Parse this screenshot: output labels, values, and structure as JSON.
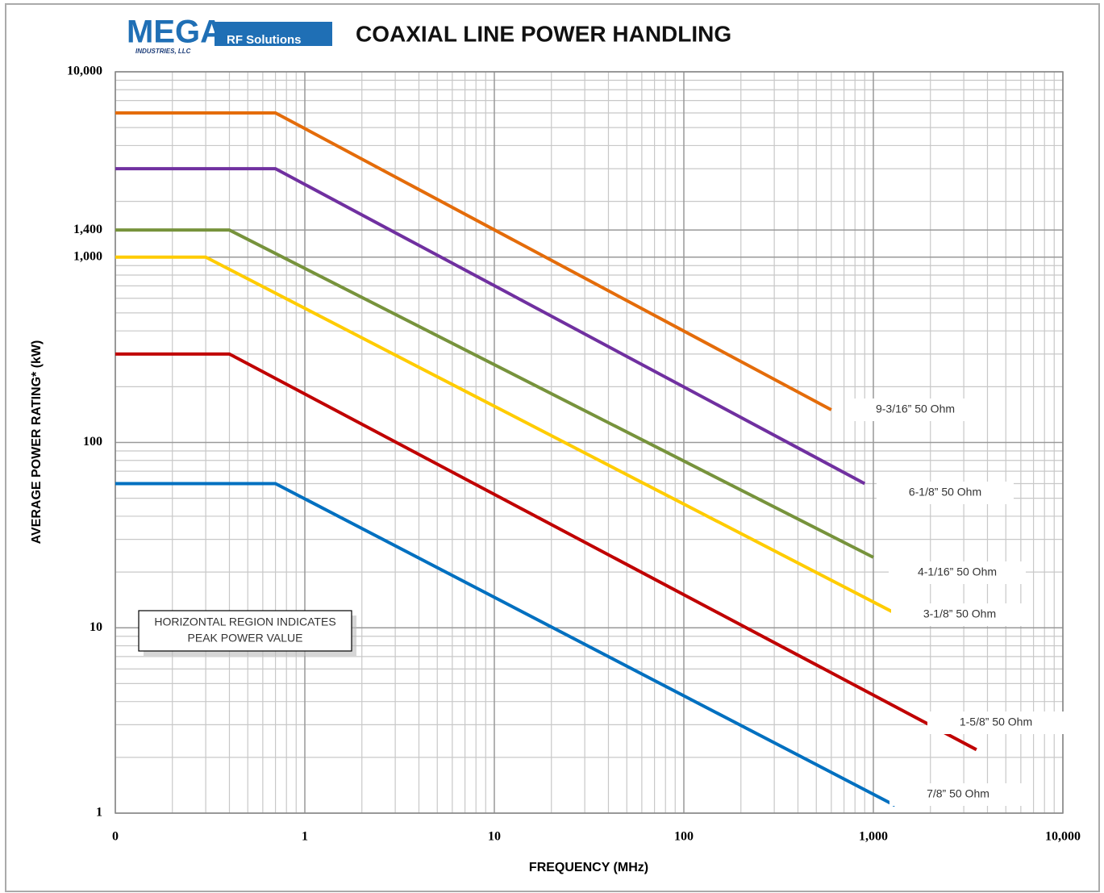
{
  "logo": {
    "brand": "MEGA",
    "tagline": "RF Solutions",
    "company": "INDUSTRIES, LLC"
  },
  "chart_data": {
    "type": "line",
    "title": "COAXIAL LINE POWER HANDLING",
    "x_label": "FREQUENCY (MHz)",
    "y_label": "AVERAGE POWER RATING* (kW)",
    "note": [
      "HORIZONTAL REGION INDICATES",
      "PEAK POWER VALUE"
    ],
    "log_x": true,
    "log_y": true,
    "grid": true,
    "xlim": [
      0.1,
      10000
    ],
    "xticks": [
      {
        "value": 0.1,
        "label": "0"
      },
      1,
      10,
      100,
      {
        "value": 1000,
        "label": "1,000"
      },
      {
        "value": 10000,
        "label": "10,000"
      }
    ],
    "ylim": [
      1,
      10000
    ],
    "yticks": [
      1,
      10,
      100,
      {
        "value": 1000,
        "label": "1,000"
      },
      {
        "value": 1400,
        "label": "1,400"
      },
      {
        "value": 10000,
        "label": "10,000"
      }
    ],
    "series": [
      {
        "name": "9-3/16” 50 Ohm",
        "color": "#e46c0a",
        "x": [
          0.1,
          0.7,
          600
        ],
        "values": [
          6000,
          6000,
          150
        ]
      },
      {
        "name": "6-1/8” 50 Ohm",
        "color": "#7030a0",
        "x": [
          0.1,
          0.7,
          900
        ],
        "values": [
          3000,
          3000,
          60
        ]
      },
      {
        "name": "4-1/16” 50 Ohm",
        "color": "#77933c",
        "x": [
          0.1,
          0.4,
          1000
        ],
        "values": [
          1400,
          1400,
          24
        ]
      },
      {
        "name": "3-1/8” 50 Ohm",
        "color": "#ffcc00",
        "x": [
          0.1,
          0.3,
          1300
        ],
        "values": [
          1000,
          1000,
          12
        ]
      },
      {
        "name": "1-5/8” 50 Ohm",
        "color": "#c00000",
        "x": [
          0.1,
          0.4,
          3500
        ],
        "values": [
          300,
          300,
          2.2
        ]
      },
      {
        "name": "7/8” 50 Ohm",
        "color": "#0070c0",
        "x": [
          0.1,
          0.7,
          1300
        ],
        "values": [
          60,
          60,
          1.1
        ]
      }
    ]
  }
}
